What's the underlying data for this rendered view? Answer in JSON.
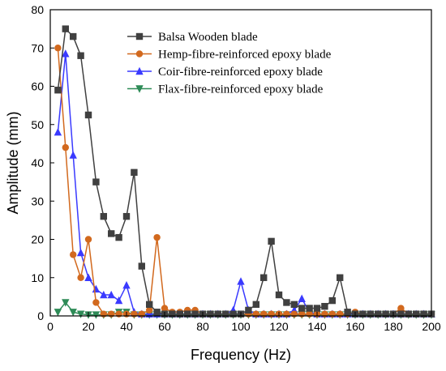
{
  "chart_data": {
    "type": "line",
    "title": "",
    "xlabel": "Frequency (Hz)",
    "ylabel": "Amplitude (mm)",
    "xlim": [
      0,
      200
    ],
    "ylim": [
      0,
      80
    ],
    "xticks": [
      "0",
      "20",
      "40",
      "60",
      "80",
      "100",
      "120",
      "140",
      "160",
      "180",
      "200"
    ],
    "yticks": [
      "0",
      "10",
      "20",
      "30",
      "40",
      "50",
      "60",
      "70",
      "80"
    ],
    "grid": false,
    "legend_position": "top-center",
    "series": [
      {
        "name": "Balsa Wooden blade",
        "color": "#404040",
        "marker": "square",
        "x": [
          4,
          8,
          12,
          16,
          20,
          24,
          28,
          32,
          36,
          40,
          44,
          48,
          52,
          56,
          60,
          64,
          68,
          72,
          76,
          80,
          84,
          88,
          92,
          96,
          100,
          104,
          108,
          112,
          116,
          120,
          124,
          128,
          132,
          136,
          140,
          144,
          148,
          152,
          156,
          160,
          164,
          168,
          172,
          176,
          180,
          184,
          188,
          192,
          196,
          200
        ],
        "y": [
          59,
          75,
          73,
          68,
          52.5,
          35,
          26,
          21.5,
          20.5,
          26,
          37.5,
          13,
          3,
          1,
          0.5,
          0.5,
          0.5,
          0.5,
          0.5,
          0.5,
          0.5,
          0.5,
          0.5,
          0.5,
          0.5,
          1.5,
          3,
          10,
          19.5,
          5.5,
          3.5,
          3,
          2,
          2,
          2,
          2.5,
          4,
          10,
          1,
          0.5,
          0.5,
          0.5,
          0.5,
          0.5,
          0.5,
          0.5,
          0.5,
          0.5,
          0.5,
          0.5
        ]
      },
      {
        "name": "Hemp-fibre-reinforced epoxy blade",
        "color": "#d2691e",
        "marker": "circle",
        "x": [
          4,
          8,
          12,
          16,
          20,
          24,
          28,
          32,
          36,
          40,
          44,
          48,
          52,
          56,
          60,
          64,
          68,
          72,
          76,
          80,
          84,
          88,
          92,
          96,
          100,
          104,
          108,
          112,
          116,
          120,
          124,
          128,
          132,
          136,
          140,
          144,
          148,
          152,
          156,
          160,
          164,
          168,
          172,
          176,
          180,
          184,
          188,
          192,
          196,
          200
        ],
        "y": [
          70,
          44,
          16,
          10,
          20,
          3.5,
          0.5,
          0.5,
          0.5,
          0.5,
          0.5,
          0.5,
          1.5,
          20.5,
          2,
          1,
          1,
          1.5,
          1.5,
          0.5,
          0.5,
          0.5,
          0.5,
          0.5,
          0.5,
          0.5,
          0.5,
          0.5,
          0.5,
          0.5,
          0.5,
          0.5,
          0.5,
          0.5,
          0.5,
          0.5,
          0.5,
          0.5,
          0.5,
          1,
          0.5,
          0.5,
          0.5,
          0.5,
          0.5,
          2,
          0.5,
          0.5,
          0.5,
          0.5
        ]
      },
      {
        "name": "Coir-fibre-reinforced epoxy blade",
        "color": "#3a3aff",
        "marker": "triangle-up",
        "x": [
          4,
          8,
          12,
          16,
          20,
          24,
          28,
          32,
          36,
          40,
          44,
          48,
          52,
          56,
          60,
          64,
          68,
          72,
          76,
          80,
          84,
          88,
          92,
          96,
          100,
          104,
          108,
          112,
          116,
          120,
          124,
          128,
          132,
          136,
          140,
          144,
          148,
          152,
          156,
          160,
          164,
          168,
          172,
          176,
          180,
          184,
          188,
          192,
          196,
          200
        ],
        "y": [
          48,
          68.5,
          42,
          16.5,
          10,
          7,
          5.5,
          5.5,
          4,
          8,
          1,
          0.5,
          0.5,
          0.5,
          0.5,
          0.5,
          0.5,
          0.5,
          0.5,
          0.5,
          0.5,
          0.5,
          0.5,
          1.5,
          9,
          1.5,
          0.5,
          0.5,
          0.5,
          0.5,
          0.5,
          1.5,
          4.5,
          1,
          0.5,
          0.5,
          0.5,
          0.5,
          0.5,
          0.5,
          0.5,
          0.5,
          0.5,
          0.5,
          0.5,
          0.5,
          0.5,
          0.5,
          0.5,
          0.5
        ]
      },
      {
        "name": "Flax-fibre-reinforced epoxy blade",
        "color": "#2e8b57",
        "marker": "triangle-down",
        "x": [
          4,
          8,
          12,
          16,
          20,
          24,
          28,
          32,
          36,
          40,
          44,
          48,
          52,
          56,
          60,
          64,
          68,
          72,
          76,
          80,
          84,
          88,
          92,
          96,
          100,
          104,
          108,
          112,
          116,
          120,
          124,
          128,
          132,
          136,
          140,
          144,
          148,
          152,
          156,
          160,
          164,
          168,
          172,
          176,
          180,
          184,
          188,
          192,
          196,
          200
        ],
        "y": [
          1,
          3.5,
          1,
          0.5,
          0.3,
          0.3,
          0.3,
          0.3,
          1,
          1,
          0.3,
          0.3,
          0.3,
          0.3,
          0.3,
          0.3,
          0.3,
          0.3,
          0.3,
          0.3,
          0.3,
          0.3,
          0.3,
          0.3,
          0.3,
          0.3,
          0.3,
          0.3,
          0.3,
          0.3,
          0.3,
          0.3,
          0.3,
          0.3,
          0.3,
          0.3,
          0.3,
          0.3,
          0.3,
          0.3,
          0.3,
          0.3,
          0.3,
          0.3,
          0.3,
          0.3,
          0.3,
          0.3,
          0.3,
          0.3
        ]
      }
    ]
  }
}
